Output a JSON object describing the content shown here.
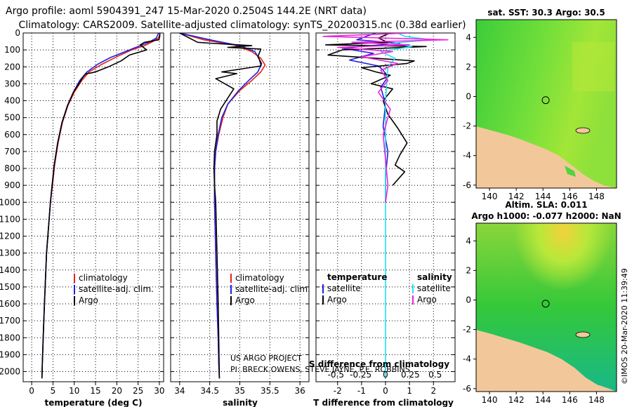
{
  "titles": {
    "line1": "Argo profile: aoml 5904391_247 15-Mar-2020 0.2504S 144.2E (NRT data)",
    "line2": "Climatology: CARS2009. Satellite-adjusted climatology: synTS_20200315.nc (0.38d earlier)"
  },
  "colors": {
    "climatology": "#e8201a",
    "satellite": "#2020e0",
    "argo": "#000000",
    "sal_satellite": "#22e0ee",
    "sal_argo": "#ee22dd",
    "land": "#f2c89a",
    "sea_mid": "#4fd63a"
  },
  "depth_axis": {
    "ticks": [
      "0",
      "100",
      "200",
      "300",
      "400",
      "500",
      "600",
      "700",
      "800",
      "900",
      "1000",
      "1100",
      "1200",
      "1300",
      "1400",
      "1500",
      "1600",
      "1700",
      "1800",
      "1900",
      "2000"
    ]
  },
  "chart_data": [
    {
      "type": "line",
      "id": "temperature",
      "xlabel": "temperature (deg C)",
      "xlim": [
        -2,
        31
      ],
      "ylim": [
        2060,
        0
      ],
      "xticks": [
        "0",
        "5",
        "10",
        "15",
        "20",
        "25",
        "30"
      ],
      "legend": [
        "climatology",
        "satellite-adj. clim.",
        "Argo"
      ],
      "series": [
        {
          "name": "climatology",
          "color_key": "climatology",
          "x": [
            30.2,
            29.8,
            28.5,
            26.5,
            23.5,
            20,
            16.5,
            13.5,
            11.8,
            10,
            8.5,
            7.2,
            6.2,
            5.4,
            4.9,
            4.4,
            3.5,
            3.0,
            2.7,
            2.5,
            2.4
          ],
          "y": [
            0,
            30,
            50,
            75,
            100,
            140,
            185,
            230,
            280,
            350,
            430,
            530,
            650,
            780,
            900,
            1000,
            1300,
            1600,
            1800,
            1950,
            2040
          ]
        },
        {
          "name": "satellite-adj. clim.",
          "color_key": "satellite",
          "x": [
            29.8,
            29.3,
            27.5,
            25,
            22,
            18.5,
            15.5,
            13,
            11.3,
            9.8,
            8.4,
            7.1,
            6.1,
            5.3,
            4.8,
            4.4,
            3.5,
            3.0,
            2.7,
            2.5,
            2.4
          ],
          "y": [
            0,
            30,
            55,
            80,
            110,
            145,
            185,
            230,
            280,
            350,
            430,
            530,
            650,
            780,
            900,
            1000,
            1300,
            1600,
            1800,
            1950,
            2040
          ]
        },
        {
          "name": "Argo",
          "color_key": "argo",
          "x": [
            30.1,
            30.1,
            29.9,
            26.5,
            25.5,
            27,
            23,
            21,
            18,
            15.5,
            14.2,
            12.8,
            12.2,
            11.8,
            11.1,
            9.8,
            8.4,
            7.1,
            6.1,
            5.3,
            4.8,
            4.4,
            3.5,
            3.0,
            2.7,
            2.5,
            2.4
          ],
          "y": [
            0,
            20,
            40,
            55,
            70,
            100,
            130,
            165,
            200,
            225,
            235,
            240,
            255,
            270,
            300,
            350,
            430,
            530,
            650,
            780,
            900,
            1000,
            1300,
            1600,
            1800,
            1950,
            2040
          ]
        }
      ]
    },
    {
      "type": "line",
      "id": "salinity",
      "xlabel": "salinity",
      "xlim": [
        33.85,
        36.15
      ],
      "ylim": [
        2060,
        0
      ],
      "xticks": [
        "34",
        "34.5",
        "35",
        "35.5",
        "36"
      ],
      "legend": [
        "climatology",
        "satellite-adj. clim.",
        "Argo"
      ],
      "series": [
        {
          "name": "climatology",
          "color_key": "climatology",
          "x": [
            34.0,
            34.4,
            34.9,
            35.2,
            35.35,
            35.42,
            35.35,
            35.2,
            35.0,
            34.8,
            34.72,
            34.65,
            34.6,
            34.58,
            34.58,
            34.58,
            34.6,
            34.62,
            34.64,
            34.65,
            34.66
          ],
          "y": [
            0,
            40,
            70,
            110,
            150,
            190,
            230,
            280,
            340,
            420,
            500,
            600,
            700,
            800,
            900,
            1000,
            1300,
            1600,
            1800,
            1950,
            2040
          ]
        },
        {
          "name": "satellite-adj. clim.",
          "color_key": "satellite",
          "x": [
            34.0,
            34.5,
            35.0,
            35.25,
            35.32,
            35.35,
            35.3,
            35.15,
            34.98,
            34.8,
            34.7,
            34.64,
            34.6,
            34.58,
            34.58,
            34.58,
            34.6,
            34.62,
            34.64,
            34.65,
            34.66
          ],
          "y": [
            0,
            40,
            75,
            110,
            150,
            190,
            230,
            280,
            340,
            420,
            500,
            600,
            700,
            800,
            900,
            1000,
            1300,
            1600,
            1800,
            1950,
            2040
          ]
        },
        {
          "name": "Argo",
          "color_key": "argo",
          "x": [
            34.0,
            34.3,
            34.5,
            35.2,
            34.8,
            35.35,
            35.3,
            35.36,
            35.35,
            34.7,
            34.95,
            34.6,
            34.9,
            34.68,
            34.62,
            34.62,
            34.58,
            34.57,
            34.58,
            34.6,
            34.62,
            34.64,
            34.65,
            34.66
          ],
          "y": [
            0,
            55,
            60,
            75,
            85,
            95,
            140,
            180,
            195,
            230,
            240,
            270,
            330,
            450,
            520,
            600,
            700,
            800,
            900,
            1000,
            1300,
            1600,
            1800,
            2040
          ]
        }
      ]
    },
    {
      "type": "line",
      "id": "difference",
      "xlabel": "T difference from climatology",
      "xlim": [
        -2.9,
        2.9
      ],
      "ylim": [
        2060,
        0
      ],
      "xticks": [
        "-2",
        "-1",
        "0",
        "1",
        "2"
      ],
      "inner_label": "S difference from climatology",
      "inner_ticks": [
        "-0.5",
        "-0.25",
        "0",
        "0.25",
        "0.5"
      ],
      "legend_temperature_title": "temperature",
      "legend_salinity_title": "salinity",
      "legend_temperature": [
        "satellite",
        "Argo"
      ],
      "legend_salinity": [
        "satellite",
        "Argo"
      ],
      "series": [
        {
          "name": "T satellite",
          "color_key": "satellite",
          "x": [
            -0.4,
            -0.8,
            -1.2,
            0.6,
            -1.8,
            -0.5,
            -1.5,
            -0.3,
            -0.1,
            0.1,
            -0.2,
            0.0,
            -0.1,
            0.1,
            0.0,
            0.0
          ],
          "y": [
            0,
            20,
            40,
            60,
            90,
            120,
            160,
            195,
            220,
            260,
            320,
            420,
            550,
            700,
            850,
            1000
          ]
        },
        {
          "name": "T Argo",
          "color_key": "argo",
          "x": [
            0.2,
            -0.3,
            0.1,
            -2.5,
            1.7,
            -1.8,
            -2.4,
            1.2,
            0.9,
            -1.0,
            -0.4,
            0.2,
            -0.6,
            0.3,
            -0.1,
            0.1,
            0.5,
            0.9,
            0.6,
            0.4,
            0.8,
            0.3
          ],
          "y": [
            0,
            30,
            55,
            70,
            80,
            100,
            130,
            165,
            180,
            205,
            230,
            250,
            300,
            330,
            400,
            480,
            560,
            650,
            720,
            780,
            820,
            900
          ]
        },
        {
          "name": "S satellite",
          "color_key": "sal_satellite",
          "x": [
            0.5,
            0.8,
            1.9,
            0.3,
            1.1,
            -0.2,
            0.4,
            0.1,
            0.0,
            0.0,
            0.0,
            0.0,
            0.0
          ],
          "y": [
            0,
            20,
            40,
            60,
            80,
            110,
            150,
            200,
            400,
            800,
            1200,
            1600,
            2040
          ]
        },
        {
          "name": "S Argo",
          "color_key": "sal_argo",
          "x": [
            1.0,
            -2.6,
            2.6,
            -1.4,
            1.0,
            -2.0,
            0.3,
            -1.0,
            0.5,
            -0.2,
            0.1,
            -0.3,
            0.2,
            -0.1,
            0.0,
            0.1,
            0.0
          ],
          "y": [
            0,
            20,
            40,
            55,
            70,
            85,
            110,
            140,
            180,
            220,
            280,
            350,
            450,
            600,
            750,
            900,
            1000
          ]
        }
      ]
    },
    {
      "type": "heatmap",
      "id": "sst-map",
      "title": "sat. SST: 30.3 Argo: 30.5",
      "xlim": [
        139,
        149.5
      ],
      "ylim": [
        -6.2,
        5.2
      ],
      "xticks": [
        "140",
        "142",
        "144",
        "146",
        "148"
      ],
      "yticks": [
        "4",
        "2",
        "0",
        "-2",
        "-4",
        "-6"
      ],
      "marker": {
        "lon": 144.2,
        "lat": -0.25
      }
    },
    {
      "type": "heatmap",
      "id": "sla-map",
      "title": "Altim. SLA: 0.011",
      "subtitle": "Argo h1000: -0.077 h2000: NaN",
      "xlim": [
        139,
        149.5
      ],
      "ylim": [
        -6.2,
        5.2
      ],
      "xticks": [
        "140",
        "142",
        "144",
        "146",
        "148"
      ],
      "yticks": [
        "4",
        "2",
        "0",
        "-2",
        "-4",
        "-6"
      ],
      "marker": {
        "lon": 144.2,
        "lat": -0.25
      }
    }
  ],
  "credits": {
    "line1": "US ARGO PROJECT",
    "line2": "PI: BRECK OWENS, STEVE JAYNE, P.E. ROBBINS"
  },
  "stamp": "©IMOS 20-Mar-2020 11:39:49"
}
